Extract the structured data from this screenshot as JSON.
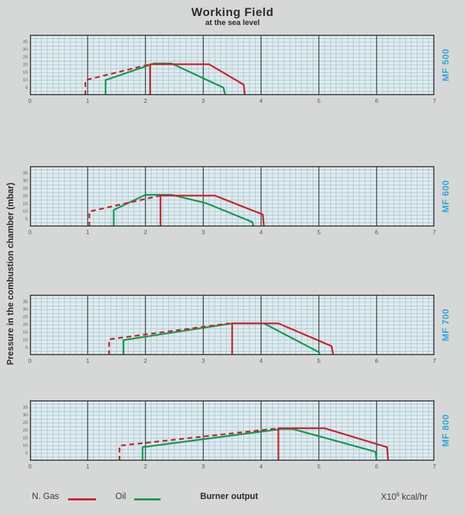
{
  "title": "Working Field",
  "subtitle": "at the sea level",
  "y_axis_title": "Pressure in the combustion chamber (mbar)",
  "legend": {
    "gas_label": "N. Gas",
    "oil_label": "Oil",
    "burner_output_label": "Burner output",
    "units_prefix": "X10",
    "units_exponent": "6",
    "units_suffix": " kcal/hr"
  },
  "chart_data": {
    "type": "line",
    "title": "Working Field at the sea level",
    "xlabel": "Burner output (X10^6 kcal/hr)",
    "ylabel": "Pressure in the combustion chamber (mbar)",
    "xlim": [
      0,
      7
    ],
    "ylim": [
      0,
      40
    ],
    "x_ticks": [
      0,
      1,
      2,
      3,
      4,
      5,
      6,
      7
    ],
    "y_ticks": [
      5,
      10,
      15,
      20,
      25,
      30,
      35
    ],
    "grid": true,
    "legend_position": "bottom",
    "colors": {
      "gas": "#c8242b",
      "oil": "#159a52",
      "model_label": "#2ba7dd",
      "plot_bg": "#e2eaee",
      "grid_minor": "#b2babe",
      "grid_cyan": "#8fccd8",
      "grid_major": "#3c4043"
    },
    "charts": [
      {
        "model": "MF 500",
        "gas_dashed": [
          [
            0.96,
            0
          ],
          [
            0.96,
            10
          ],
          [
            2.08,
            20.5
          ]
        ],
        "gas_solid": [
          [
            2.08,
            0
          ],
          [
            2.08,
            20.5
          ],
          [
            3.1,
            20.5
          ],
          [
            3.7,
            7
          ],
          [
            3.72,
            0
          ]
        ],
        "oil": [
          [
            1.31,
            0
          ],
          [
            1.31,
            10
          ],
          [
            2.15,
            21
          ],
          [
            2.45,
            21
          ],
          [
            3.35,
            5
          ],
          [
            3.38,
            0
          ]
        ]
      },
      {
        "model": "MF 600",
        "gas_dashed": [
          [
            1.03,
            0
          ],
          [
            1.03,
            10
          ],
          [
            2.26,
            20.5
          ]
        ],
        "gas_solid": [
          [
            2.26,
            0
          ],
          [
            2.26,
            20.5
          ],
          [
            3.2,
            20.5
          ],
          [
            4.03,
            8
          ],
          [
            4.05,
            0
          ]
        ],
        "oil": [
          [
            1.45,
            0
          ],
          [
            1.45,
            11
          ],
          [
            2.0,
            21
          ],
          [
            2.45,
            21
          ],
          [
            3.05,
            15.5
          ],
          [
            3.85,
            3
          ],
          [
            3.87,
            0
          ]
        ]
      },
      {
        "model": "MF 700",
        "gas_dashed": [
          [
            1.37,
            0
          ],
          [
            1.37,
            10.5
          ],
          [
            3.45,
            21
          ]
        ],
        "gas_solid": [
          [
            3.5,
            0
          ],
          [
            3.5,
            21
          ],
          [
            4.3,
            21
          ],
          [
            5.22,
            6
          ],
          [
            5.25,
            0
          ]
        ],
        "oil": [
          [
            1.62,
            0
          ],
          [
            1.62,
            10
          ],
          [
            3.5,
            21
          ],
          [
            4.05,
            21
          ],
          [
            5.0,
            2
          ],
          [
            5.02,
            0
          ]
        ]
      },
      {
        "model": "MF 800",
        "gas_dashed": [
          [
            1.55,
            0
          ],
          [
            1.55,
            10
          ],
          [
            4.25,
            21.3
          ]
        ],
        "gas_solid": [
          [
            4.3,
            0
          ],
          [
            4.3,
            21.5
          ],
          [
            5.1,
            21.5
          ],
          [
            6.18,
            9
          ],
          [
            6.2,
            0
          ]
        ],
        "oil": [
          [
            1.95,
            0
          ],
          [
            1.95,
            9
          ],
          [
            4.35,
            21
          ],
          [
            4.55,
            21
          ],
          [
            5.98,
            6
          ],
          [
            6.0,
            0
          ]
        ]
      }
    ]
  }
}
